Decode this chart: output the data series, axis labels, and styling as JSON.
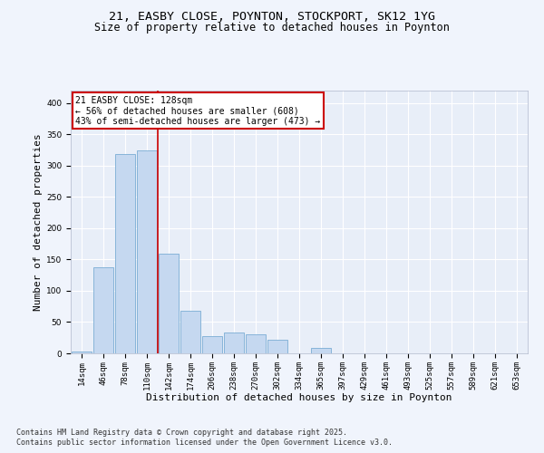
{
  "title1": "21, EASBY CLOSE, POYNTON, STOCKPORT, SK12 1YG",
  "title2": "Size of property relative to detached houses in Poynton",
  "xlabel": "Distribution of detached houses by size in Poynton",
  "ylabel": "Number of detached properties",
  "bin_labels": [
    "14sqm",
    "46sqm",
    "78sqm",
    "110sqm",
    "142sqm",
    "174sqm",
    "206sqm",
    "238sqm",
    "270sqm",
    "302sqm",
    "334sqm",
    "365sqm",
    "397sqm",
    "429sqm",
    "461sqm",
    "493sqm",
    "525sqm",
    "557sqm",
    "589sqm",
    "621sqm",
    "653sqm"
  ],
  "bar_values": [
    3,
    138,
    318,
    325,
    160,
    68,
    28,
    33,
    30,
    22,
    0,
    8,
    0,
    0,
    0,
    0,
    0,
    0,
    0,
    0,
    0
  ],
  "bar_color": "#c5d8f0",
  "bar_edge_color": "#7aadd4",
  "vline_color": "#cc0000",
  "annotation_text": "21 EASBY CLOSE: 128sqm\n← 56% of detached houses are smaller (608)\n43% of semi-detached houses are larger (473) →",
  "annotation_box_color": "#ffffff",
  "annotation_box_edge": "#cc0000",
  "ylim": [
    0,
    420
  ],
  "yticks": [
    0,
    50,
    100,
    150,
    200,
    250,
    300,
    350,
    400
  ],
  "background_color": "#f0f4fc",
  "plot_bg_color": "#e8eef8",
  "footer_line1": "Contains HM Land Registry data © Crown copyright and database right 2025.",
  "footer_line2": "Contains public sector information licensed under the Open Government Licence v3.0.",
  "title_fontsize": 9.5,
  "subtitle_fontsize": 8.5,
  "tick_fontsize": 6.5,
  "label_fontsize": 8,
  "footer_fontsize": 6,
  "annot_fontsize": 7
}
